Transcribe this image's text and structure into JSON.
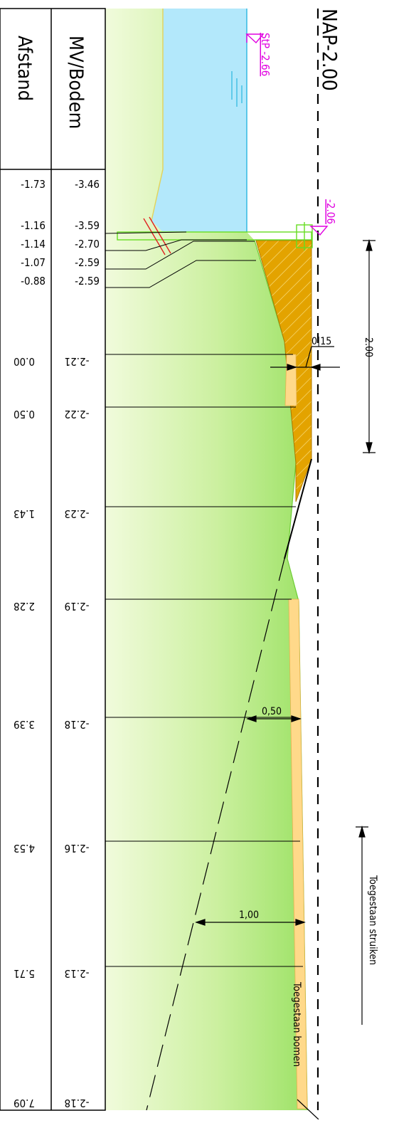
{
  "header": {
    "col_afstand": "Afstand",
    "col_mv_bodem": "MV/Bodem",
    "nap_label": "NAP-2.00"
  },
  "water": {
    "stp_label": "StP -2.66",
    "level_label": "-2.06"
  },
  "rows_upper": [
    {
      "afstand": "-1.73",
      "mv": "-3.46"
    },
    {
      "afstand": "-1.16",
      "mv": "-3.59"
    },
    {
      "afstand": "-1.14",
      "mv": "-2.70"
    },
    {
      "afstand": "-1.07",
      "mv": "-2.59"
    },
    {
      "afstand": "-0.88",
      "mv": "-2.59"
    }
  ],
  "rows_lower": [
    {
      "afstand": "0.00",
      "mv": "-2.21"
    },
    {
      "afstand": "0.50",
      "mv": "-2.22"
    },
    {
      "afstand": "1.43",
      "mv": "-2.23"
    },
    {
      "afstand": "2.28",
      "mv": "-2.19"
    },
    {
      "afstand": "3.39",
      "mv": "-2.18"
    },
    {
      "afstand": "4.53",
      "mv": "-2.16"
    },
    {
      "afstand": "5.71",
      "mv": "-2.13"
    },
    {
      "afstand": "7.09",
      "mv": "-2.18"
    }
  ],
  "dimensions": {
    "sheet_thickness": "0|15",
    "sheet_length": "2.00",
    "dist_050": "0,50",
    "dist_100": "1,00"
  },
  "annotations": {
    "shrubs": "Toegestaan struiken",
    "trees": "Toegestaan bomen"
  },
  "colors": {
    "water": "#b3e8fb",
    "soil_light": "#eefad7",
    "soil_green": "#a5e56c",
    "sheet_pile": "#e3a300",
    "verge": "#ffd98a",
    "magenta": "#e000e0"
  }
}
